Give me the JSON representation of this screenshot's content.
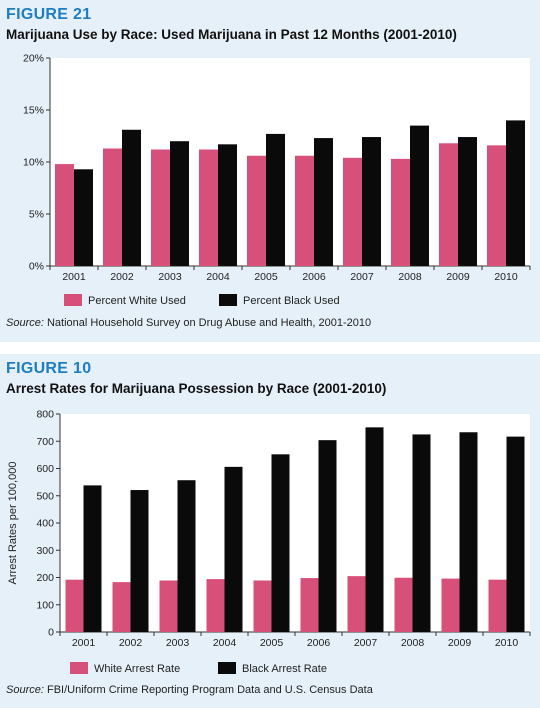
{
  "colors": {
    "white_series": "#d6507a",
    "black_series": "#0a0a0a",
    "accent": "#1f7dc2",
    "panel_bg": "#e6f0f9"
  },
  "chart_data": [
    {
      "type": "bar",
      "figure_label": "FIGURE 21",
      "title": "Marijuana Use by Race: Used Marijuana in Past 12 Months (2001-2010)",
      "xlabel": "",
      "ylabel": "",
      "categories": [
        "2001",
        "2002",
        "2003",
        "2004",
        "2005",
        "2006",
        "2007",
        "2008",
        "2009",
        "2010"
      ],
      "series": [
        {
          "name": "Percent White Used",
          "values": [
            9.8,
            11.3,
            11.2,
            11.2,
            10.6,
            10.6,
            10.4,
            10.3,
            11.8,
            11.6
          ]
        },
        {
          "name": "Percent Black Used",
          "values": [
            9.3,
            13.1,
            12.0,
            11.7,
            12.7,
            12.3,
            12.4,
            13.5,
            12.4,
            14.0
          ]
        }
      ],
      "ylim": [
        0,
        20
      ],
      "yticks": [
        0,
        5,
        10,
        15,
        20
      ],
      "ytick_labels": [
        "0%",
        "5%",
        "10%",
        "15%",
        "20%"
      ],
      "legend_position": "bottom-left",
      "grid": false,
      "source_prefix": "Source:",
      "source_text": " National Household Survey on Drug Abuse and Health, 2001-2010"
    },
    {
      "type": "bar",
      "figure_label": "FIGURE 10",
      "title": "Arrest Rates for Marijuana Possession by Race (2001-2010)",
      "xlabel": "",
      "ylabel": "Arrest Rates per 100,000",
      "categories": [
        "2001",
        "2002",
        "2003",
        "2004",
        "2005",
        "2006",
        "2007",
        "2008",
        "2009",
        "2010"
      ],
      "series": [
        {
          "name": "White Arrest Rate",
          "values": [
            192,
            183,
            189,
            194,
            189,
            198,
            205,
            199,
            196,
            192
          ]
        },
        {
          "name": "Black Arrest Rate",
          "values": [
            538,
            521,
            557,
            606,
            652,
            704,
            751,
            725,
            733,
            717
          ]
        }
      ],
      "ylim": [
        0,
        800
      ],
      "yticks": [
        0,
        100,
        200,
        300,
        400,
        500,
        600,
        700,
        800
      ],
      "ytick_labels": [
        "0",
        "100",
        "200",
        "300",
        "400",
        "500",
        "600",
        "700",
        "800"
      ],
      "legend_position": "bottom-left",
      "grid": false,
      "source_prefix": "Source:",
      "source_text": " FBI/Uniform Crime Reporting Program Data and U.S. Census Data"
    }
  ]
}
